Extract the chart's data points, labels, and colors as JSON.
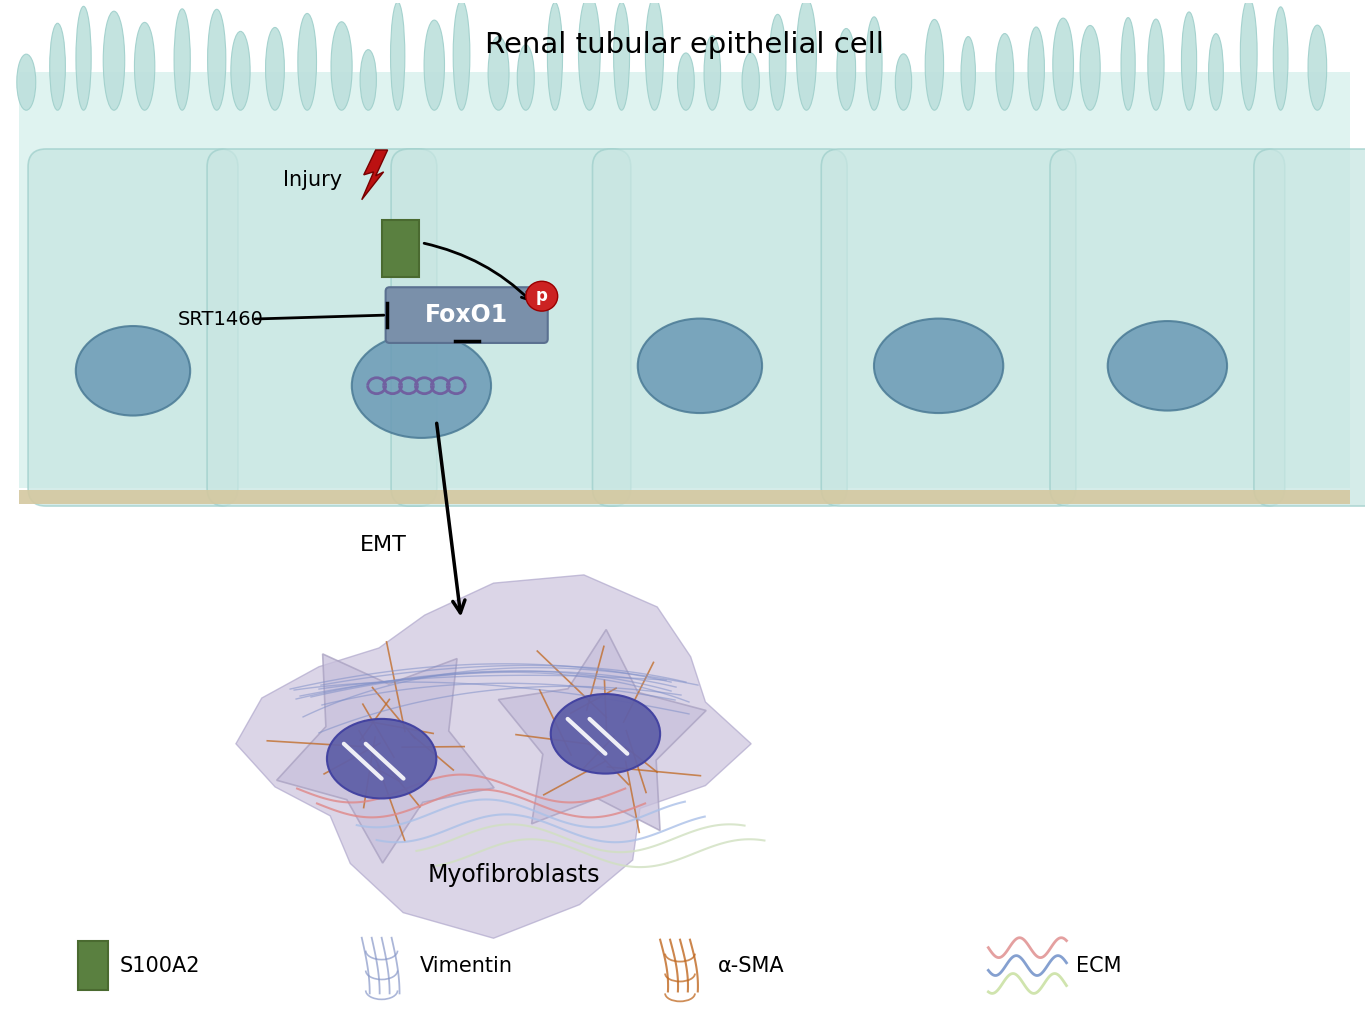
{
  "title": "Renal tubular epithelial cell",
  "bg_color": "#ffffff",
  "cell_area_fill": "#cce8e5",
  "cell_body_fill": "#c5e4e1",
  "cell_body_stroke": "#9fcfcb",
  "nucleus_fill": "#6a9ab0",
  "nucleus_stroke": "#5a8a9f",
  "nucleus_fill2": "#5a8fa5",
  "foxo1_box_fill": "#7a90aa",
  "foxo1_box_stroke": "#5a7090",
  "s100a2_fill": "#5a8040",
  "s100a2_stroke": "#4a6a30",
  "p_circle_fill": "#cc2222",
  "injury_color": "#bb1111",
  "membrane_color": "#c8b898",
  "myofib_fill": "#c8c0dc",
  "myofib_nucleus_fill": "#6060a8",
  "arrow_color": "#111111",
  "emt_label": "EMT",
  "srt_label": "SRT1460",
  "injury_label": "Injury",
  "foxo1_label": "FoxO1",
  "p_label": "p",
  "myofib_label": "Myofibroblasts",
  "legend_items": [
    "S100A2",
    "Vimentin",
    "α-SMA",
    "ECM"
  ],
  "vimentin_color": "#8090c8",
  "sma_color": "#c07030",
  "ecm_pink": "#e09090",
  "ecm_blue": "#7090c8",
  "ecm_light": "#c8e0a0"
}
